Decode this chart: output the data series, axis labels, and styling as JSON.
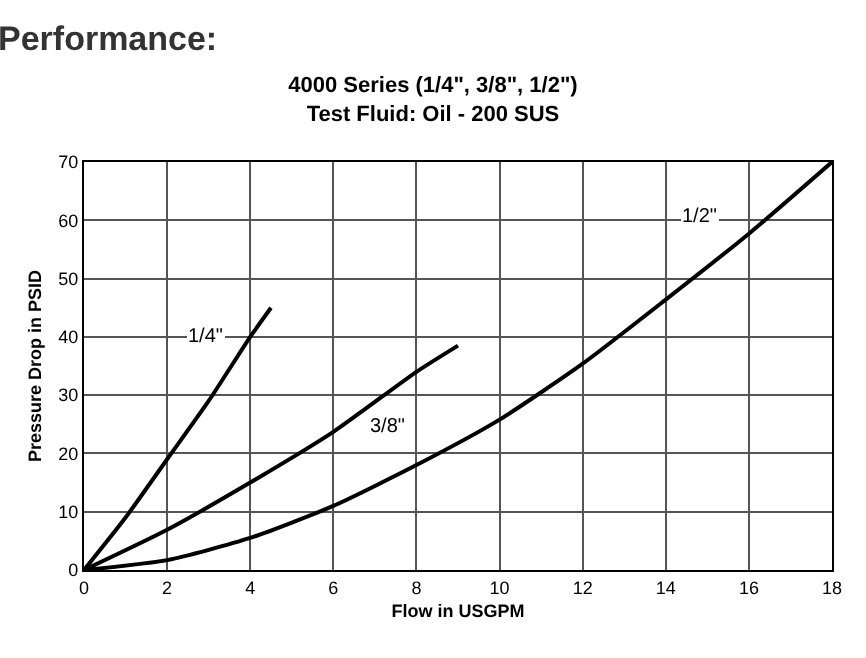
{
  "chart_data": {
    "type": "line",
    "title": "4000 Series (1/4\", 3/8\", 1/2\")",
    "subtitle": "Test Fluid: Oil - 200 SUS",
    "xlabel": "Flow in USGPM",
    "ylabel": "Pressure Drop in PSID",
    "annotations": [
      "Performance:"
    ],
    "series": [
      {
        "name": "1/4\"",
        "color": "#000000",
        "x": [
          0,
          1,
          2,
          3,
          4,
          4.5
        ],
        "values": [
          0,
          9,
          19,
          29,
          40,
          45
        ]
      },
      {
        "name": "3/8\"",
        "color": "#000000",
        "x": [
          0,
          2,
          4,
          6,
          8,
          9
        ],
        "values": [
          0,
          6.9,
          15,
          23.7,
          34,
          38.5
        ]
      },
      {
        "name": "1/2\"",
        "color": "#000000",
        "x": [
          0,
          2,
          4,
          6,
          8,
          10,
          12,
          14,
          16,
          18
        ],
        "values": [
          0,
          1.7,
          5.5,
          11,
          18,
          25.8,
          35.4,
          46.4,
          57.7,
          70
        ]
      }
    ],
    "xlim": [
      0,
      18
    ],
    "xticks": [
      0,
      2,
      4,
      6,
      8,
      10,
      12,
      14,
      16,
      18
    ],
    "ylim": [
      0,
      70
    ],
    "yticks": [
      0,
      10,
      20,
      30,
      40,
      50,
      60,
      70
    ],
    "grid": true,
    "legend": false,
    "marker": "none",
    "line_style": "solid"
  }
}
